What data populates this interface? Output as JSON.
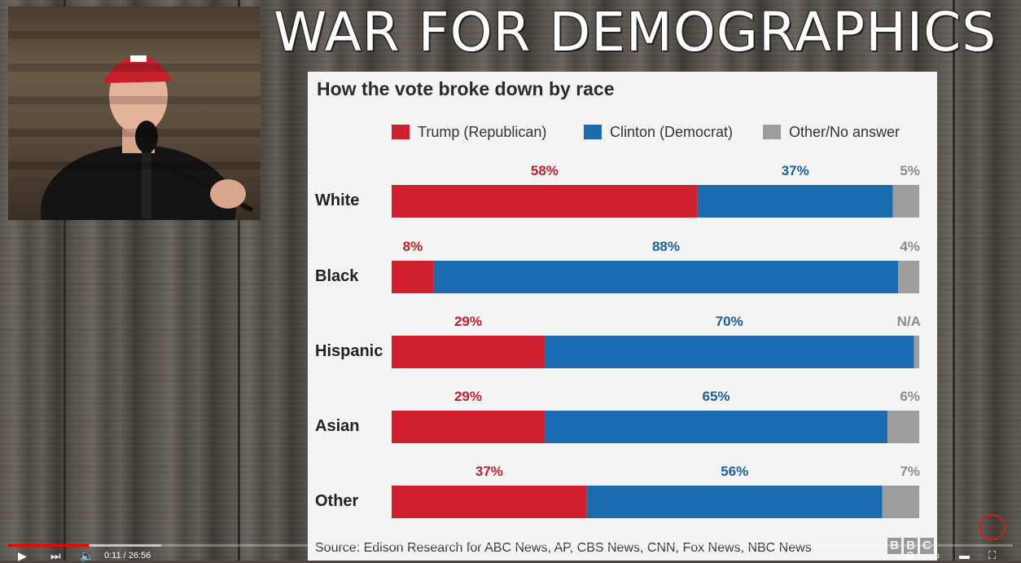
{
  "video": {
    "title": "WAR FOR DEMOGRAPHICS",
    "time_display": "0:11 / 26:56",
    "progress_fraction": 0.008
  },
  "chart": {
    "title": "How the vote broke down by race",
    "source": "Source: Edison Research for ABC News, AP, CBS News, CNN, Fox News, NBC News",
    "brand": [
      "B",
      "B",
      "C"
    ]
  },
  "chart_data": {
    "type": "bar",
    "orientation": "horizontal",
    "stacked": true,
    "categories": [
      "White",
      "Black",
      "Hispanic",
      "Asian",
      "Other"
    ],
    "series": [
      {
        "name": "Trump (Republican)",
        "color": "#d0202e",
        "values": [
          58,
          8,
          29,
          29,
          37
        ],
        "labels": [
          "58%",
          "8%",
          "29%",
          "29%",
          "37%"
        ]
      },
      {
        "name": "Clinton (Democrat)",
        "color": "#1a6bb0",
        "values": [
          37,
          88,
          70,
          65,
          56
        ],
        "labels": [
          "37%",
          "88%",
          "70%",
          "65%",
          "56%"
        ]
      },
      {
        "name": "Other/No answer",
        "color": "#9d9d9d",
        "values": [
          5,
          4,
          1,
          6,
          7
        ],
        "labels": [
          "5%",
          "4%",
          "N/A",
          "6%",
          "7%"
        ]
      }
    ],
    "legend_position": "top"
  }
}
